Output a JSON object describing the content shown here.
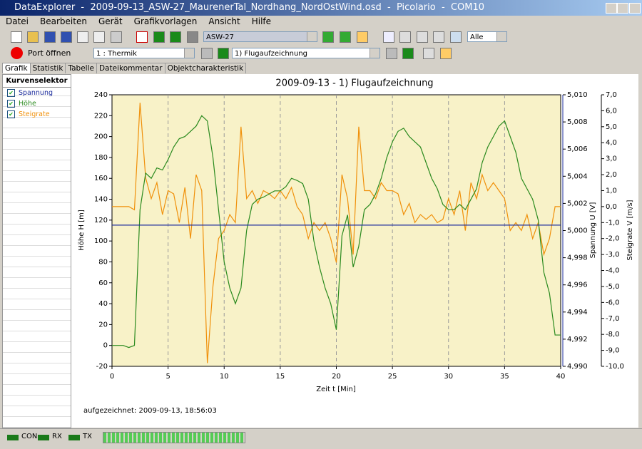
{
  "window": {
    "title": "DataExplorer  -  2009-09-13_ASW-27_MaurenerTal_Nordhang_NordOstWind.osd  -  Picolario  -  COM10"
  },
  "menu": [
    "Datei",
    "Bearbeiten",
    "Gerät",
    "Grafikvorlagen",
    "Ansicht",
    "Hilfe"
  ],
  "toolbar": {
    "device": "ASW-27",
    "filter": "Alle",
    "port": "Port öffnen",
    "channel": "1 : Thermik",
    "record": "1) Flugaufzeichnung"
  },
  "tabs": [
    "Grafik",
    "Statistik",
    "Tabelle",
    "Dateikommentar",
    "Objektcharakteristik"
  ],
  "selector": {
    "title": "Kurvenselektor",
    "items": [
      "Spannung",
      "Höhe",
      "Steigrate"
    ]
  },
  "chart": {
    "type": "line",
    "title": "2009-09-13 - 1) Flugaufzeichnung",
    "xlabel": "Zeit  t  [Min]",
    "ylabel": "Höhe  H  [m]",
    "y2label": "Spannung  U  [V]",
    "y3label": "Steigrate  V  [m/s]",
    "xlim": [
      0,
      40
    ],
    "xticks": [
      0,
      5,
      10,
      15,
      20,
      25,
      30,
      35,
      40
    ],
    "ylim": [
      -20,
      240
    ],
    "yticks": [
      -20,
      0,
      20,
      40,
      60,
      80,
      100,
      120,
      140,
      160,
      180,
      200,
      220,
      240
    ],
    "y2lim": [
      4.99,
      5.01
    ],
    "y2ticks": [
      {
        "value": 4.99,
        "label": "4,990"
      },
      {
        "value": 4.992,
        "label": "4,992"
      },
      {
        "value": 4.994,
        "label": "4,994"
      },
      {
        "value": 4.996,
        "label": "4,996"
      },
      {
        "value": 4.998,
        "label": "4,998"
      },
      {
        "value": 5.0,
        "label": "5,000"
      },
      {
        "value": 5.002,
        "label": "5,002"
      },
      {
        "value": 5.004,
        "label": "5,004"
      },
      {
        "value": 5.006,
        "label": "5,006"
      },
      {
        "value": 5.008,
        "label": "5,008"
      },
      {
        "value": 5.01,
        "label": "5,010"
      }
    ],
    "y3lim": [
      -10,
      7
    ],
    "y3ticks": [
      {
        "value": -10,
        "label": "-10,0"
      },
      {
        "value": -9,
        "label": "-9,0"
      },
      {
        "value": -8,
        "label": "-8,0"
      },
      {
        "value": -7,
        "label": "-7,0"
      },
      {
        "value": -6,
        "label": "-6,0"
      },
      {
        "value": -5,
        "label": "-5,0"
      },
      {
        "value": -4,
        "label": "-4,0"
      },
      {
        "value": -3,
        "label": "-3,0"
      },
      {
        "value": -2,
        "label": "-2,0"
      },
      {
        "value": -1,
        "label": "-1,0"
      },
      {
        "value": 0,
        "label": "0,0"
      },
      {
        "value": 1,
        "label": "1,0"
      },
      {
        "value": 2,
        "label": "2,0"
      },
      {
        "value": 3,
        "label": "3,0"
      },
      {
        "value": 4,
        "label": "4,0"
      },
      {
        "value": 5,
        "label": "5,0"
      },
      {
        "value": 6,
        "label": "6,0"
      },
      {
        "value": 7,
        "label": "7,0"
      }
    ],
    "grid": "x",
    "series": [
      {
        "name": "Spannung",
        "color": "#1c2c9c",
        "axis": "y2",
        "x": [
          0,
          40
        ],
        "values": [
          5.0004,
          5.0004
        ]
      },
      {
        "name": "Höhe",
        "color": "#2a8a1e",
        "axis": "y",
        "x": [
          0,
          0.5,
          1,
          1.5,
          2,
          2.5,
          3,
          3.5,
          4,
          4.5,
          5,
          5.5,
          6,
          6.5,
          7,
          7.5,
          8,
          8.5,
          9,
          9.5,
          10,
          10.5,
          11,
          11.5,
          12,
          12.5,
          13,
          13.5,
          14,
          14.5,
          15,
          15.5,
          16,
          16.5,
          17,
          17.5,
          18,
          18.5,
          19,
          19.5,
          20,
          20.5,
          21,
          21.5,
          22,
          22.5,
          23,
          23.5,
          24,
          24.5,
          25,
          25.5,
          26,
          26.5,
          27,
          27.5,
          28,
          28.5,
          29,
          29.5,
          30,
          30.5,
          31,
          31.5,
          32,
          32.5,
          33,
          33.5,
          34,
          34.5,
          35,
          35.5,
          36,
          36.5,
          37,
          37.5,
          38,
          38.5,
          39,
          39.5,
          40
        ],
        "values": [
          0,
          0,
          0,
          -2,
          0,
          130,
          165,
          160,
          170,
          168,
          178,
          190,
          198,
          200,
          205,
          210,
          220,
          215,
          180,
          130,
          80,
          55,
          40,
          55,
          110,
          135,
          140,
          142,
          145,
          148,
          148,
          152,
          160,
          158,
          155,
          140,
          100,
          75,
          55,
          40,
          15,
          105,
          125,
          75,
          95,
          130,
          135,
          145,
          160,
          180,
          195,
          205,
          208,
          200,
          195,
          190,
          175,
          160,
          150,
          135,
          130,
          130,
          135,
          130,
          140,
          150,
          175,
          190,
          200,
          210,
          215,
          200,
          185,
          160,
          150,
          140,
          120,
          70,
          50,
          10,
          10
        ]
      },
      {
        "name": "Steigrate",
        "color": "#f0900a",
        "axis": "y3",
        "x": [
          0,
          0.5,
          1,
          1.5,
          2,
          2.5,
          3,
          3.5,
          4,
          4.5,
          5,
          5.5,
          6,
          6.5,
          7,
          7.5,
          8,
          8.5,
          9,
          9.5,
          10,
          10.5,
          11,
          11.5,
          12,
          12.5,
          13,
          13.5,
          14,
          14.5,
          15,
          15.5,
          16,
          16.5,
          17,
          17.5,
          18,
          18.5,
          19,
          19.5,
          20,
          20.5,
          21,
          21.5,
          22,
          22.5,
          23,
          23.5,
          24,
          24.5,
          25,
          25.5,
          26,
          26.5,
          27,
          27.5,
          28,
          28.5,
          29,
          29.5,
          30,
          30.5,
          31,
          31.5,
          32,
          32.5,
          33,
          33.5,
          34,
          34.5,
          35,
          35.5,
          36,
          36.5,
          37,
          37.5,
          38,
          38.5,
          39,
          39.5,
          40
        ],
        "values": [
          0,
          0,
          0,
          0,
          -0.2,
          6.5,
          1.8,
          0.5,
          1.5,
          -0.5,
          1,
          0.8,
          -1,
          1.2,
          -2,
          2,
          1,
          -9.8,
          -5,
          -2,
          -1.5,
          -0.5,
          -1,
          5,
          0.5,
          1,
          0.2,
          1,
          0.8,
          0.5,
          1,
          0.5,
          1.2,
          0,
          -0.5,
          -2,
          -1,
          -1.5,
          -1,
          -2,
          -3.5,
          2,
          0.5,
          -3,
          5,
          1,
          1,
          0.5,
          1.5,
          1,
          1,
          0.8,
          -0.5,
          0.2,
          -1,
          -0.5,
          -0.8,
          -0.5,
          -1,
          -0.8,
          0.5,
          -0.5,
          1,
          -1.5,
          1.5,
          0.5,
          2,
          1,
          1.5,
          1,
          0.5,
          -1.5,
          -1,
          -1.5,
          -0.5,
          -2,
          -1,
          -3,
          -2,
          0,
          0
        ]
      }
    ],
    "annotation": "aufgezeichnet: 2009-09-13, 18:56:03"
  },
  "status": [
    "CON",
    "RX",
    "TX"
  ]
}
